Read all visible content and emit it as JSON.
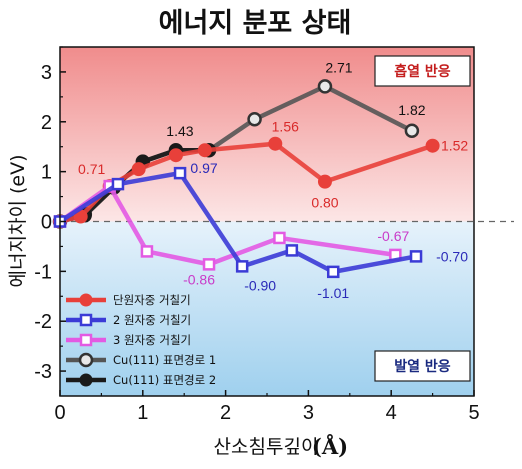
{
  "chart_data": {
    "type": "line",
    "title": "에너지 분포 상태",
    "xlabel": "산소침투깊이",
    "xlabel_unit": "(Å)",
    "ylabel": "에너지차이 (eV)",
    "xlim": [
      0,
      5
    ],
    "ylim": [
      -3.5,
      3.5
    ],
    "x_ticks": [
      "0",
      "1",
      "2",
      "3",
      "4",
      "5"
    ],
    "y_ticks": [
      "3",
      "2",
      "1",
      "0",
      "-1",
      "-2",
      "-3"
    ],
    "regions": {
      "positive": {
        "label": "흡열 반응",
        "color": "#c41e1e"
      },
      "negative": {
        "label": "발열 반응",
        "color": "#1a2a80"
      }
    },
    "series": [
      {
        "name": "단원자중 거칠기",
        "color": "#e8403a",
        "marker": "filled-circle",
        "x": [
          0,
          0.25,
          0.6,
          0.95,
          1.4,
          1.75,
          2.6,
          3.2,
          4.5
        ],
        "y": [
          0,
          0.1,
          0.71,
          1.05,
          1.33,
          1.43,
          1.56,
          0.8,
          1.52
        ],
        "labels": [
          {
            "text": "0.71",
            "x": 0.6,
            "y": 0.71
          },
          {
            "text": "1.56",
            "x": 2.6,
            "y": 1.56
          },
          {
            "text": "0.80",
            "x": 3.2,
            "y": 0.8
          },
          {
            "text": "1.52",
            "x": 4.5,
            "y": 1.52
          }
        ]
      },
      {
        "name": "2 원자중 거칠기",
        "color": "#3b3bd6",
        "marker": "open-square",
        "x": [
          0,
          0.7,
          1.45,
          2.2,
          2.8,
          3.3,
          4.3
        ],
        "y": [
          0,
          0.75,
          0.97,
          -0.9,
          -0.58,
          -1.01,
          -0.7
        ],
        "labels": [
          {
            "text": "0.97",
            "x": 1.45,
            "y": 0.97
          },
          {
            "text": "-0.90",
            "x": 2.2,
            "y": -0.9
          },
          {
            "text": "-1.01",
            "x": 3.3,
            "y": -1.01
          },
          {
            "text": "-0.70",
            "x": 4.3,
            "y": -0.7
          }
        ]
      },
      {
        "name": "3 원자중 거칠기",
        "color": "#e35ae3",
        "marker": "open-square",
        "x": [
          0,
          0.6,
          1.05,
          1.8,
          2.65,
          4.05
        ],
        "y": [
          0,
          0.71,
          -0.6,
          -0.86,
          -0.33,
          -0.67
        ],
        "labels": [
          {
            "text": "-0.86",
            "x": 1.8,
            "y": -0.86
          },
          {
            "text": "-0.67",
            "x": 4.05,
            "y": -0.67
          }
        ]
      },
      {
        "name": "Cu(111) 표면경로 1",
        "color": "#555555",
        "marker": "open-circle",
        "x": [
          0,
          0.3,
          0.65,
          1.0,
          1.4,
          1.8,
          2.35,
          3.2,
          4.25
        ],
        "y": [
          0,
          0.15,
          0.68,
          1.2,
          1.43,
          1.43,
          2.05,
          2.71,
          1.82
        ],
        "labels": [
          {
            "text": "1.43",
            "x": 1.4,
            "y": 1.43
          },
          {
            "text": "2.71",
            "x": 3.2,
            "y": 2.71
          },
          {
            "text": "1.82",
            "x": 4.25,
            "y": 1.82
          }
        ]
      },
      {
        "name": "Cu(111) 표면경로 2",
        "color": "#1a1a1a",
        "marker": "filled-circle",
        "x": [
          0,
          0.3,
          0.65,
          1.0,
          1.4,
          1.8
        ],
        "y": [
          0,
          0.12,
          0.68,
          1.2,
          1.43,
          1.43
        ],
        "labels": []
      }
    ],
    "legend": {
      "position": "bottom-left"
    }
  }
}
